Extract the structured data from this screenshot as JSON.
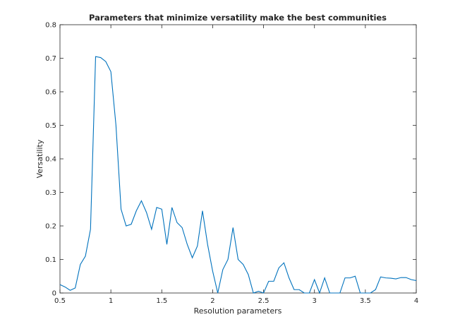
{
  "chart_data": {
    "type": "line",
    "title": "Parameters that minimize versatility make the best communities",
    "xlabel": "Resolution parameters",
    "ylabel": "Versatility",
    "xlim": [
      0.5,
      4
    ],
    "ylim": [
      0,
      0.8
    ],
    "xticks": [
      0.5,
      1,
      1.5,
      2,
      2.5,
      3,
      3.5,
      4
    ],
    "xtick_labels": [
      "0.5",
      "1",
      "1.5",
      "2",
      "2.5",
      "3",
      "3.5",
      "4"
    ],
    "yticks": [
      0,
      0.1,
      0.2,
      0.3,
      0.4,
      0.5,
      0.6,
      0.7,
      0.8
    ],
    "ytick_labels": [
      "0",
      "0.1",
      "0.2",
      "0.3",
      "0.4",
      "0.5",
      "0.6",
      "0.7",
      "0.8"
    ],
    "grid": false,
    "line_color": "#0072bd",
    "series": [
      {
        "x": [
          0.5,
          0.55,
          0.6,
          0.65,
          0.7,
          0.75,
          0.8,
          0.85,
          0.9,
          0.95,
          1.0,
          1.05,
          1.1,
          1.15,
          1.2,
          1.25,
          1.3,
          1.35,
          1.4,
          1.45,
          1.5,
          1.55,
          1.6,
          1.65,
          1.7,
          1.75,
          1.8,
          1.85,
          1.9,
          1.95,
          2.0,
          2.05,
          2.1,
          2.15,
          2.2,
          2.25,
          2.3,
          2.35,
          2.4,
          2.45,
          2.5,
          2.55,
          2.6,
          2.65,
          2.7,
          2.75,
          2.8,
          2.85,
          2.9,
          2.95,
          3.0,
          3.05,
          3.1,
          3.15,
          3.2,
          3.25,
          3.3,
          3.35,
          3.4,
          3.45,
          3.5,
          3.55,
          3.6,
          3.65,
          3.7,
          3.75,
          3.8,
          3.85,
          3.9,
          3.95,
          4.0
        ],
        "values": [
          0.025,
          0.018,
          0.008,
          0.015,
          0.085,
          0.11,
          0.19,
          0.705,
          0.702,
          0.69,
          0.66,
          0.5,
          0.25,
          0.2,
          0.205,
          0.245,
          0.275,
          0.24,
          0.19,
          0.255,
          0.25,
          0.145,
          0.255,
          0.21,
          0.195,
          0.145,
          0.105,
          0.14,
          0.245,
          0.145,
          0.065,
          0.0,
          0.07,
          0.1,
          0.195,
          0.1,
          0.085,
          0.055,
          0.0,
          0.005,
          0.0,
          0.035,
          0.035,
          0.075,
          0.09,
          0.045,
          0.01,
          0.01,
          0.0,
          0.0,
          0.04,
          0.0,
          0.045,
          0.0,
          0.0,
          0.0,
          0.045,
          0.045,
          0.05,
          0.0,
          0.0,
          0.0,
          0.01,
          0.048,
          0.045,
          0.044,
          0.042,
          0.046,
          0.046,
          0.04,
          0.037
        ]
      }
    ]
  }
}
